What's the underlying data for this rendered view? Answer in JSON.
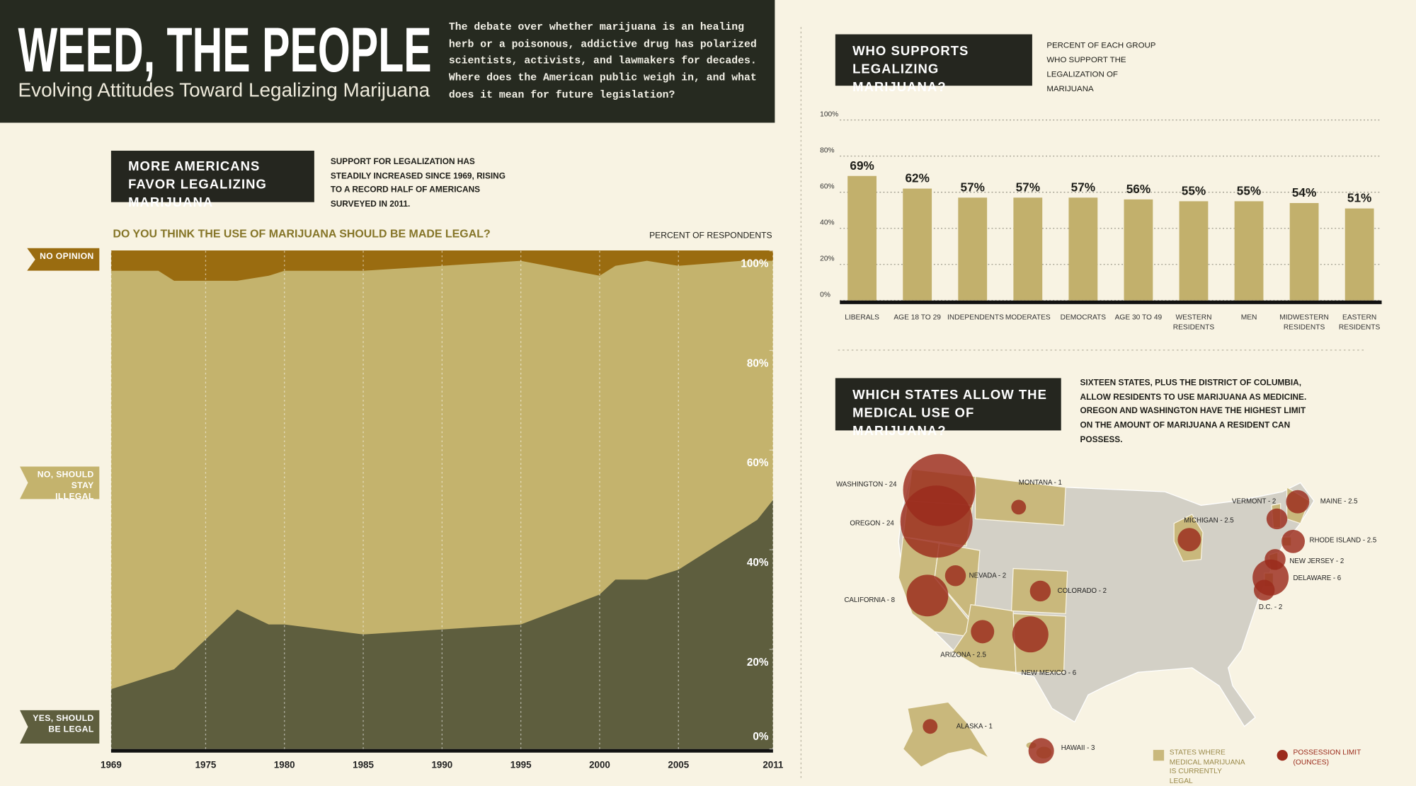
{
  "header": {
    "title": "WEED, THE PEOPLE",
    "subtitle": "Evolving Attitudes Toward Legalizing Marijuana",
    "intro": "The debate over whether marijuana is an healing herb or a poisonous, addictive drug has polarized scientists, activists, and lawmakers for decades. Where does the American public weigh in, and what does it mean for future legislation?"
  },
  "chart_data": [
    {
      "type": "stacked-area",
      "title": "MORE AMERICANS FAVOR LEGALIZING MARIJUANA",
      "subtitle": "SUPPORT FOR LEGALIZATION HAS STEADILY INCREASED SINCE 1969, RISING TO A RECORD HALF OF AMERICANS SURVEYED IN 2011.",
      "question": "DO YOU THINK THE USE OF MARIJUANA SHOULD BE MADE LEGAL?",
      "y_label": "PERCENT OF RESPONDENTS",
      "x": [
        1969,
        1972,
        1973,
        1977,
        1979,
        1980,
        1985,
        1995,
        2000,
        2001,
        2003,
        2005,
        2009,
        2010,
        2011
      ],
      "series": [
        {
          "name": "YES, SHOULD BE LEGAL",
          "color": "#5e5e3e",
          "values": [
            12,
            15,
            16,
            28,
            25,
            25,
            23,
            25,
            31,
            34,
            34,
            36,
            44,
            46,
            50
          ]
        },
        {
          "name": "NO, SHOULD STAY ILLEGAL",
          "color": "#c4b36d",
          "values": [
            84,
            81,
            78,
            66,
            70,
            71,
            73,
            73,
            64,
            63,
            64,
            61,
            54,
            52,
            48
          ]
        },
        {
          "name": "NO OPINION",
          "color": "#9a6c10",
          "values": [
            4,
            4,
            6,
            6,
            5,
            4,
            4,
            2,
            5,
            3,
            2,
            3,
            2,
            2,
            2
          ]
        }
      ],
      "xlim": [
        1969,
        2011
      ],
      "xticks": [
        1969,
        1975,
        1980,
        1985,
        1990,
        1995,
        2000,
        2005,
        2011
      ],
      "ylim": [
        0,
        100
      ],
      "yticks": [
        {
          "value": 0,
          "label": "0%"
        },
        {
          "value": 20,
          "label": "20%"
        },
        {
          "value": 40,
          "label": "40%"
        },
        {
          "value": 60,
          "label": "60%"
        },
        {
          "value": 80,
          "label": "80%"
        },
        {
          "value": 100,
          "label": "100%"
        }
      ],
      "x_grid": true
    },
    {
      "type": "bar",
      "title": "WHO SUPPORTS LEGALIZING MARIJUANA?",
      "subtitle": "PERCENT OF EACH GROUP WHO SUPPORT THE LEGALIZATION OF MARIJUANA",
      "categories": [
        "LIBERALS",
        "AGE 18 TO 29",
        "INDEPENDENTS",
        "MODERATES",
        "DEMOCRATS",
        "AGE 30 TO 49",
        "WESTERN RESIDENTS",
        "MEN",
        "MIDWESTERN RESIDENTS",
        "EASTERN RESIDENTS"
      ],
      "values": [
        69,
        62,
        57,
        57,
        57,
        56,
        55,
        55,
        54,
        51
      ],
      "value_labels": [
        "69%",
        "62%",
        "57%",
        "57%",
        "57%",
        "56%",
        "55%",
        "55%",
        "54%",
        "51%"
      ],
      "color": "#c2b06c",
      "ylim": [
        0,
        100
      ],
      "yticks": [
        {
          "value": 0,
          "label": "0%"
        },
        {
          "value": 20,
          "label": "20%"
        },
        {
          "value": 40,
          "label": "40%"
        },
        {
          "value": 60,
          "label": "60%"
        },
        {
          "value": 80,
          "label": "80%"
        },
        {
          "value": 100,
          "label": "100%"
        }
      ],
      "grid": true
    },
    {
      "type": "bubble-map",
      "title": "WHICH STATES ALLOW THE MEDICAL USE OF MARIJUANA?",
      "subtitle": "SIXTEEN STATES, PLUS THE DISTRICT OF COLUMBIA, ALLOW RESIDENTS TO USE MARIJUANA AS MEDICINE. OREGON AND WASHINGTON HAVE THE HIGHEST LIMIT ON THE AMOUNT OF MARIJUANA A RESIDENT CAN POSSESS.",
      "values": [
        24,
        24,
        1,
        2.5,
        2,
        2.5,
        2.5,
        2,
        6,
        2,
        2,
        2,
        8,
        2.5,
        6,
        1,
        3
      ],
      "value_labels": [
        "WASHINGTON - 24",
        "OREGON - 24",
        "MONTANA - 1",
        "MICHIGAN - 2.5",
        "VERMONT - 2",
        "MAINE - 2.5",
        "RHODE ISLAND - 2.5",
        "NEW JERSEY - 2",
        "DELAWARE - 6",
        "D.C. - 2",
        "NEVADA - 2",
        "COLORADO - 2",
        "CALIFORNIA - 8",
        "ARIZONA - 2.5",
        "NEW MEXICO - 6",
        "ALASKA - 1",
        "HAWAII - 3"
      ],
      "color": "#9b2b1c",
      "region_color": "#c9b87c",
      "legend": {
        "region": "STATES WHERE MEDICAL MARIJUANA IS CURRENTLY LEGAL",
        "bubble": "POSSESSION LIMIT (OUNCES)"
      }
    }
  ]
}
